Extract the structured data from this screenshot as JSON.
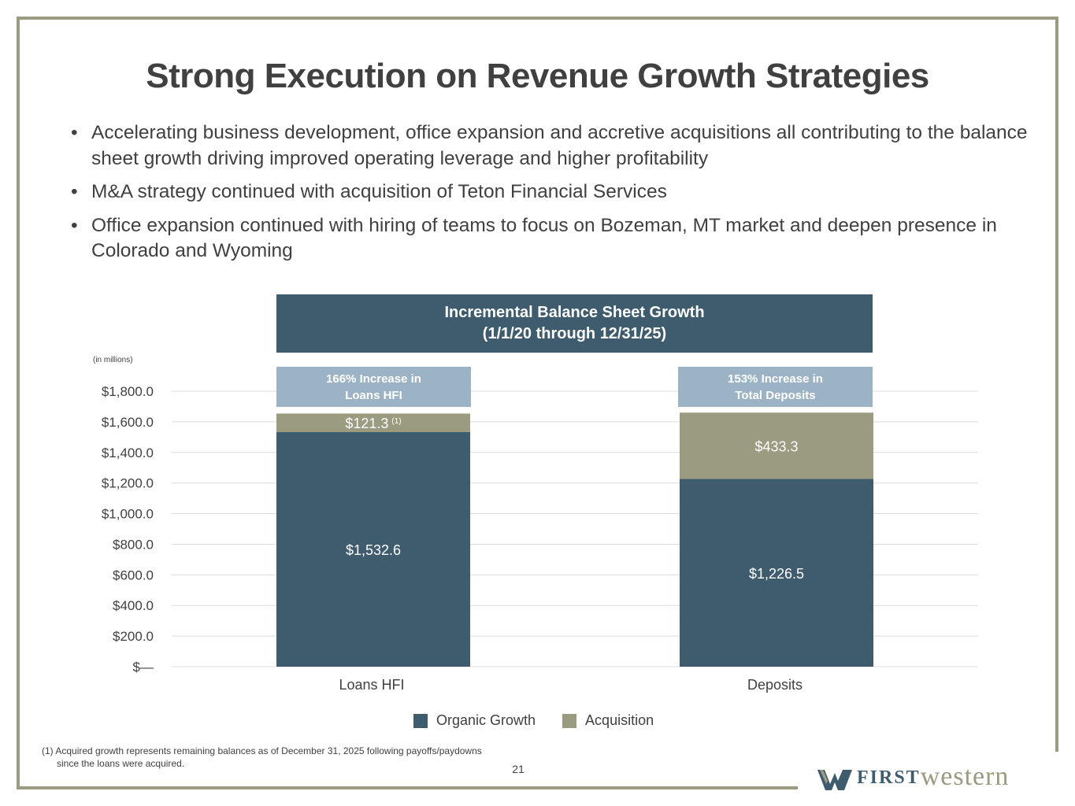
{
  "title": "Strong Execution on Revenue Growth Strategies",
  "bullets": [
    "Accelerating business development, office expansion and accretive acquisitions all contributing to the balance sheet growth driving improved operating leverage and higher profitability",
    "M&A strategy continued with acquisition of Teton Financial Services",
    "Office expansion continued with hiring of teams to focus on Bozeman, MT market and deepen presence in Colorado and Wyoming"
  ],
  "bullet_glyph": "•",
  "chart_header": {
    "line1": "Incremental Balance Sheet Growth",
    "line2": "(1/1/20 through 12/31/25)"
  },
  "units_label": "(in millions)",
  "callouts": [
    {
      "line1": "166%  Increase in",
      "line2": "Loans HFI"
    },
    {
      "line1": "153% Increase in",
      "line2": "Total Deposits"
    }
  ],
  "chart_data": {
    "type": "bar",
    "stacked": true,
    "categories": [
      "Loans HFI",
      "Deposits"
    ],
    "series": [
      {
        "name": "Organic Growth",
        "values": [
          1532.6,
          1226.5
        ],
        "labels": [
          "$1,532.6",
          "$1,226.5"
        ],
        "color": "#3e5c6e"
      },
      {
        "name": "Acquisition",
        "values": [
          121.3,
          433.3
        ],
        "labels": [
          "$121.3",
          "$433.3"
        ],
        "color": "#9a9b80"
      }
    ],
    "footnote_marks": [
      "(1)",
      ""
    ],
    "yticks": [
      {
        "v": 0,
        "label": "$—"
      },
      {
        "v": 200,
        "label": "$200.0"
      },
      {
        "v": 400,
        "label": "$400.0"
      },
      {
        "v": 600,
        "label": "$600.0"
      },
      {
        "v": 800,
        "label": "$800.0"
      },
      {
        "v": 1000,
        "label": "$1,000.0"
      },
      {
        "v": 1200,
        "label": "$1,200.0"
      },
      {
        "v": 1400,
        "label": "$1,400.0"
      },
      {
        "v": 1600,
        "label": "$1,600.0"
      },
      {
        "v": 1800,
        "label": "$1,800.0"
      }
    ],
    "ylim": [
      0,
      1800
    ],
    "grid": true,
    "legend_position": "bottom"
  },
  "legend": [
    {
      "label": "Organic Growth",
      "color": "#3e5c6e"
    },
    {
      "label": "Acquisition",
      "color": "#9a9b80"
    }
  ],
  "footnote": {
    "line1": "(1) Acquired growth represents remaining balances as of December 31, 2025 following payoffs/paydowns",
    "line2": "since the loans were acquired."
  },
  "page_number": "21",
  "logo": {
    "first": "FIRST",
    "western": "western"
  },
  "colors": {
    "frame": "#9a9b80",
    "header_bg": "#3e5c6e",
    "callout_bg": "#9bb3c4"
  }
}
